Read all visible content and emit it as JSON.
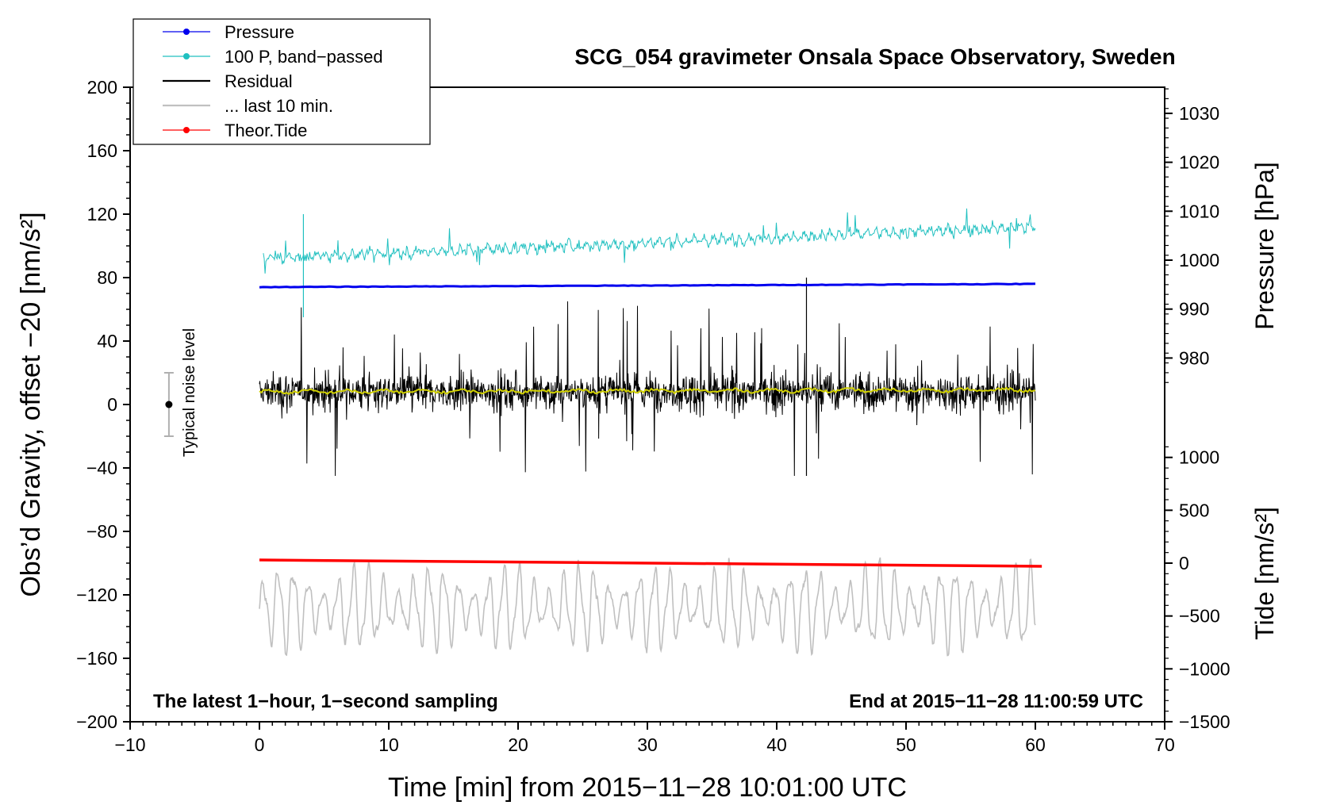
{
  "chart_data": {
    "type": "line",
    "title": "SCG_054 gravimeter Onsala Space Observatory, Sweden",
    "xlabel": "Time [min] from 2015−11−28 10:01:00 UTC",
    "ylabel": "Obs’d Gravity, offset −20 [nm/s²]",
    "xlim": [
      -10,
      70
    ],
    "ylim": [
      -200,
      200
    ],
    "xticks": [
      "−10",
      "0",
      "10",
      "20",
      "30",
      "40",
      "50",
      "60",
      "70"
    ],
    "yticks": [
      "−200",
      "−160",
      "−120",
      "−80",
      "−40",
      "0",
      "40",
      "80",
      "120",
      "160",
      "200"
    ],
    "right_axis_pressure": {
      "label": "Pressure [hPa]",
      "ticks": [
        {
          "label": "980",
          "value": 980
        },
        {
          "label": "990",
          "value": 990
        },
        {
          "label": "1000",
          "value": 1000
        },
        {
          "label": "1010",
          "value": 1010
        },
        {
          "label": "1020",
          "value": 1020
        },
        {
          "label": "1030",
          "value": 1030
        }
      ]
    },
    "right_axis_tide": {
      "label": "Tide [nm/s²]",
      "ticks": [
        {
          "label": "−1500",
          "value": -1500
        },
        {
          "label": "−1000",
          "value": -1000
        },
        {
          "label": "−500",
          "value": -500
        },
        {
          "label": "0",
          "value": 0
        },
        {
          "label": "500",
          "value": 500
        },
        {
          "label": "1000",
          "value": 1000
        }
      ]
    },
    "series": [
      {
        "name": "Pressure",
        "color": "#0000ee",
        "x": [
          0,
          60
        ],
        "y": [
          74,
          76
        ]
      },
      {
        "name": "100 P, band−passed",
        "color": "#20c0c0",
        "x_range": [
          0.3,
          60
        ],
        "y_mean_range": [
          92,
          112
        ],
        "amplitude": 8
      },
      {
        "name": "Residual",
        "color": "#000000",
        "x_range": [
          0,
          60
        ],
        "y_mean": 8,
        "amplitude": 40
      },
      {
        "name": "... last 10 min.",
        "color": "#c0c0c0",
        "x_range": [
          0,
          60
        ],
        "y_mean": -128,
        "amplitude": 30
      },
      {
        "name": "Theor.Tide",
        "color": "#ff0000",
        "x": [
          0,
          60.5
        ],
        "y": [
          -98,
          -102
        ]
      },
      {
        "name": "Residual smoothed",
        "color": "#d0d000",
        "x_range": [
          0,
          60
        ],
        "y_mean": 8
      }
    ],
    "noise_level": {
      "label": "Typical noise level",
      "x": -7,
      "center": 0,
      "half_range": 20
    },
    "legend": [
      {
        "label": "Pressure",
        "color": "#0000ee",
        "marker": true
      },
      {
        "label": "100 P, band−passed",
        "color": "#20c0c0",
        "marker": true
      },
      {
        "label": "Residual",
        "color": "#000000",
        "marker": false
      },
      {
        "label": "... last 10 min.",
        "color": "#c0c0c0",
        "marker": false
      },
      {
        "label": "Theor.Tide",
        "color": "#ff0000",
        "marker": true
      }
    ],
    "legend_position": "top-left",
    "annotations": {
      "left_note": "The latest 1−hour, 1−second sampling",
      "right_note": "End at 2015−11−28 11:00:59 UTC"
    }
  }
}
